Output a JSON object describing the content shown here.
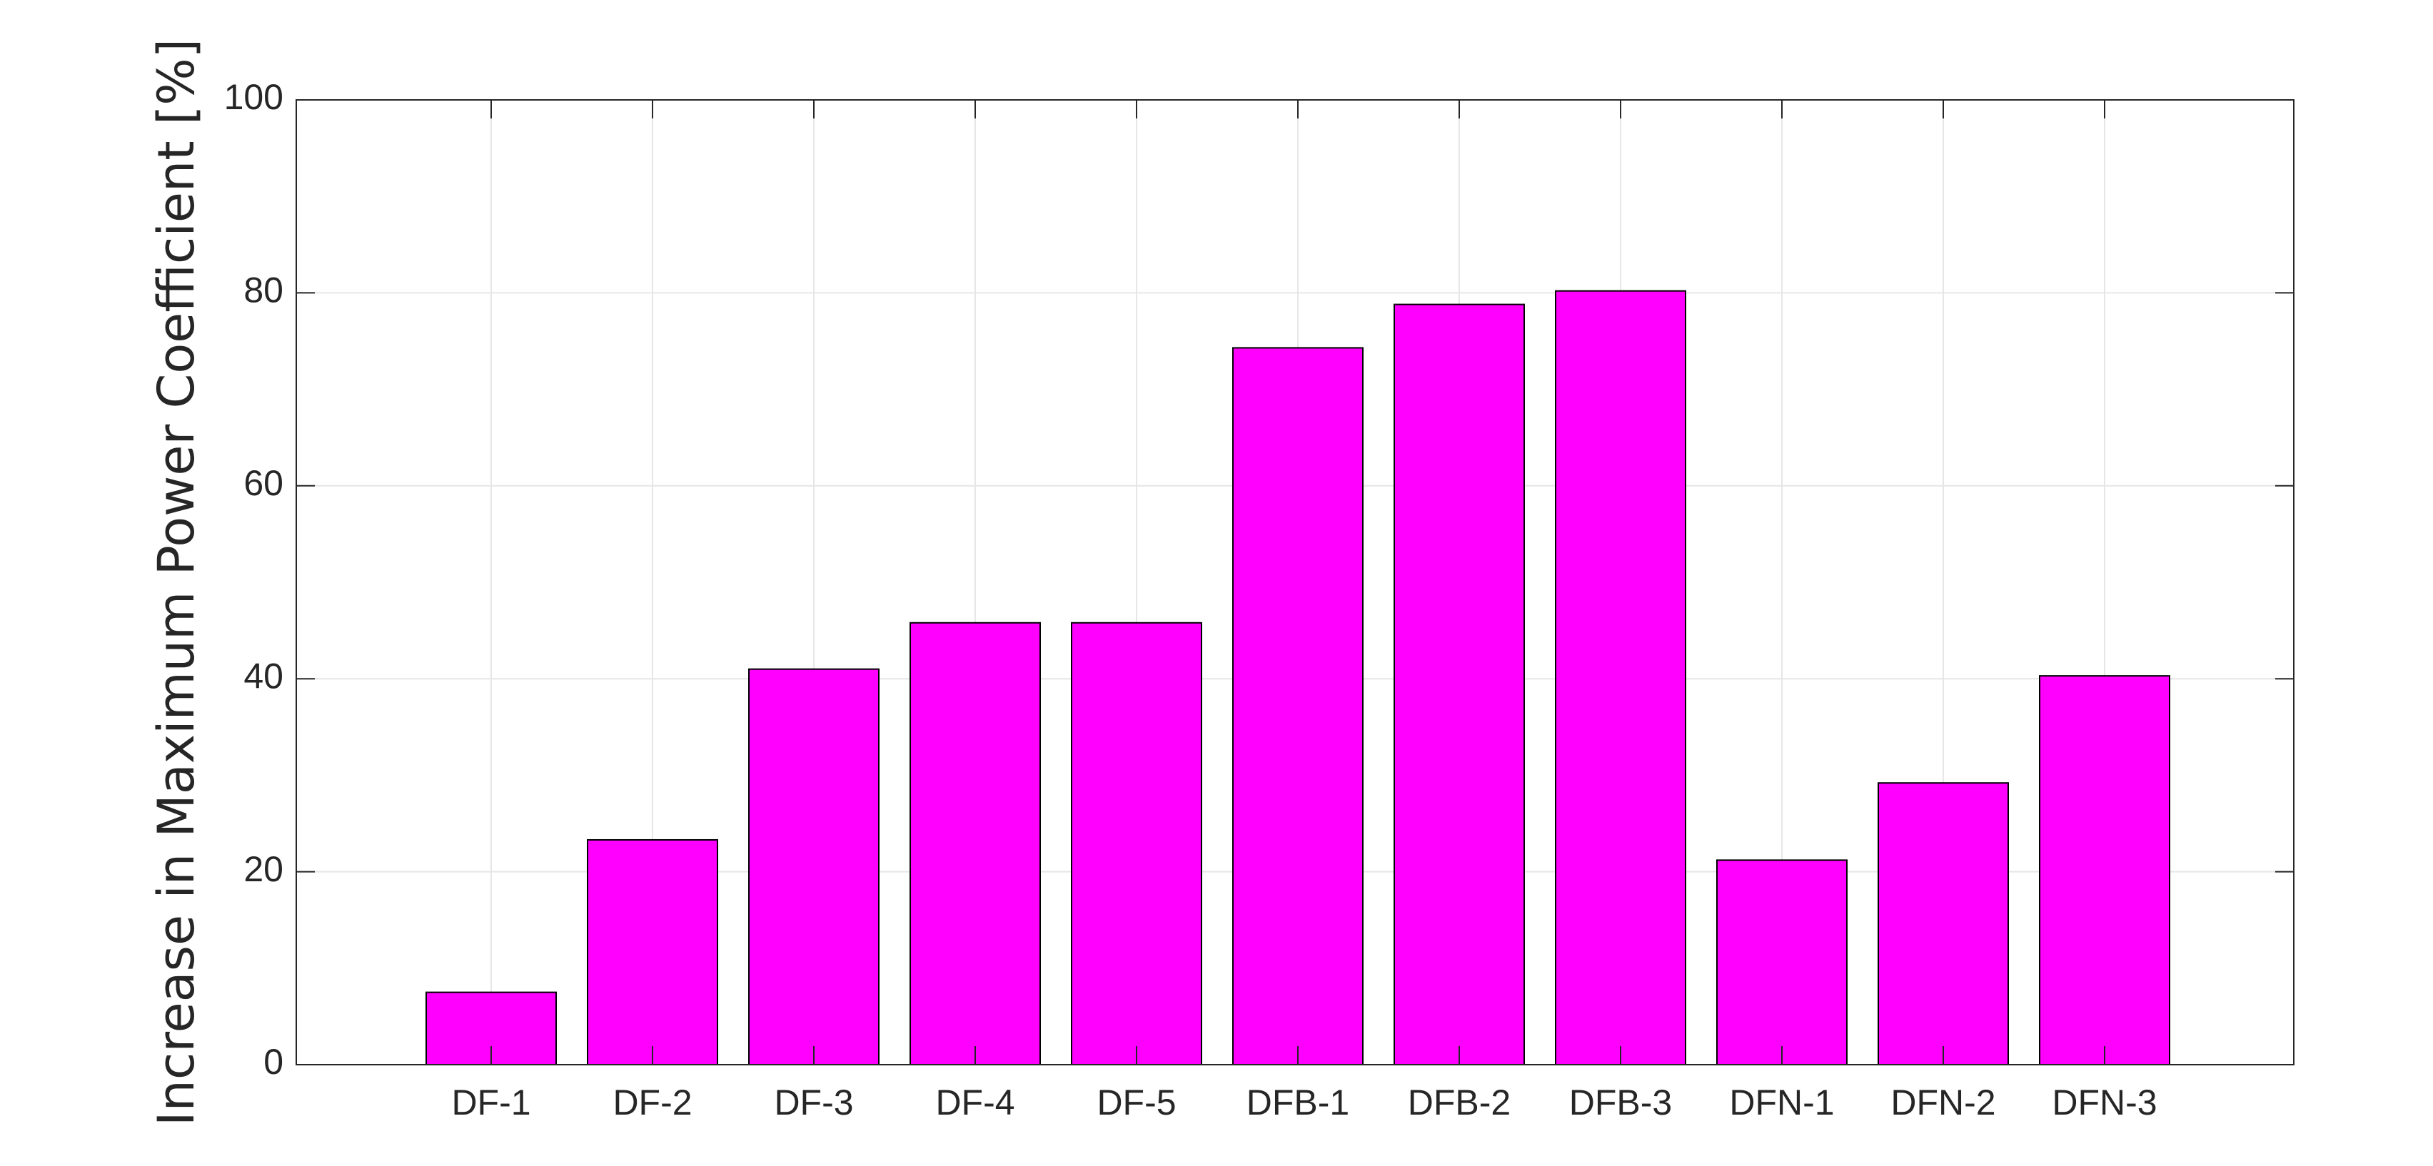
{
  "chart_data": {
    "type": "bar",
    "categories": [
      "DF-1",
      "DF-2",
      "DF-3",
      "DF-4",
      "DF-5",
      "DFB-1",
      "DFB-2",
      "DFB-3",
      "DFN-1",
      "DFN-2",
      "DFN-3"
    ],
    "values": [
      7.5,
      23.3,
      41.0,
      45.8,
      45.8,
      74.3,
      78.8,
      80.2,
      21.2,
      29.2,
      40.3
    ],
    "title": "",
    "xlabel": "",
    "ylabel": "Increase in Maximum Power Coefficient [%]",
    "ylim": [
      0,
      100
    ],
    "yticks": [
      0,
      20,
      40,
      60,
      80,
      100
    ],
    "grid": true,
    "legend": "none",
    "bar_color": "#ff00ff",
    "edge_color": "#000000"
  }
}
